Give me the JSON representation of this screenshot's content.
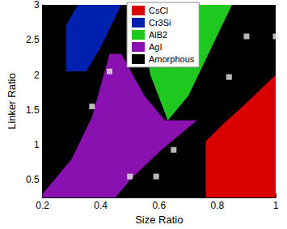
{
  "chart_data": {
    "type": "region_map",
    "x_label": "Size Ratio",
    "y_label": "Linker Ratio",
    "xlim": [
      0.2,
      1
    ],
    "ylim": [
      0.25,
      3
    ],
    "xticks": [
      0.2,
      0.4,
      0.6,
      0.8,
      1
    ],
    "yticks": [
      0.5,
      1,
      1.5,
      2,
      2.5,
      3
    ],
    "legend": "top",
    "regions": [
      {
        "name": "CsCl",
        "color": "#d80000",
        "polygon": [
          [
            0.76,
            0.25
          ],
          [
            0.76,
            1.05
          ],
          [
            0.82,
            1.3
          ],
          [
            0.9,
            1.6
          ],
          [
            1.0,
            2.0
          ],
          [
            1.0,
            0.25
          ]
        ]
      },
      {
        "name": "Cr3Si",
        "color": "#0020b0",
        "polygon": [
          [
            0.28,
            2.05
          ],
          [
            0.35,
            2.05
          ],
          [
            0.4,
            2.4
          ],
          [
            0.47,
            3.0
          ],
          [
            0.32,
            3.0
          ],
          [
            0.28,
            2.7
          ]
        ]
      },
      {
        "name": "AlB2",
        "color": "#1ec81e",
        "polygon": [
          [
            0.53,
            3.0
          ],
          [
            0.57,
            2.0
          ],
          [
            0.63,
            1.35
          ],
          [
            0.7,
            1.7
          ],
          [
            0.85,
            3.0
          ]
        ]
      },
      {
        "name": "AgI",
        "color": "#8a10b0",
        "polygon": [
          [
            0.2,
            0.25
          ],
          [
            0.2,
            0.3
          ],
          [
            0.3,
            0.8
          ],
          [
            0.37,
            1.4
          ],
          [
            0.43,
            2.3
          ],
          [
            0.47,
            2.3
          ],
          [
            0.55,
            1.7
          ],
          [
            0.62,
            1.35
          ],
          [
            0.73,
            1.35
          ],
          [
            0.6,
            0.9
          ],
          [
            0.5,
            0.5
          ],
          [
            0.45,
            0.25
          ]
        ]
      },
      {
        "name": "Amorphous",
        "color": "#000000",
        "polygon": [
          [
            0.2,
            0.25
          ],
          [
            0.2,
            3.0
          ],
          [
            1.0,
            3.0
          ],
          [
            1.0,
            0.25
          ]
        ]
      }
    ],
    "points": {
      "color": "#e6e6e6",
      "marker": "square",
      "x": [
        0.37,
        0.43,
        0.5,
        0.59,
        0.65,
        0.84,
        0.9,
        1.0
      ],
      "y": [
        1.55,
        2.05,
        0.55,
        0.55,
        0.93,
        1.97,
        2.55,
        2.55
      ]
    }
  }
}
